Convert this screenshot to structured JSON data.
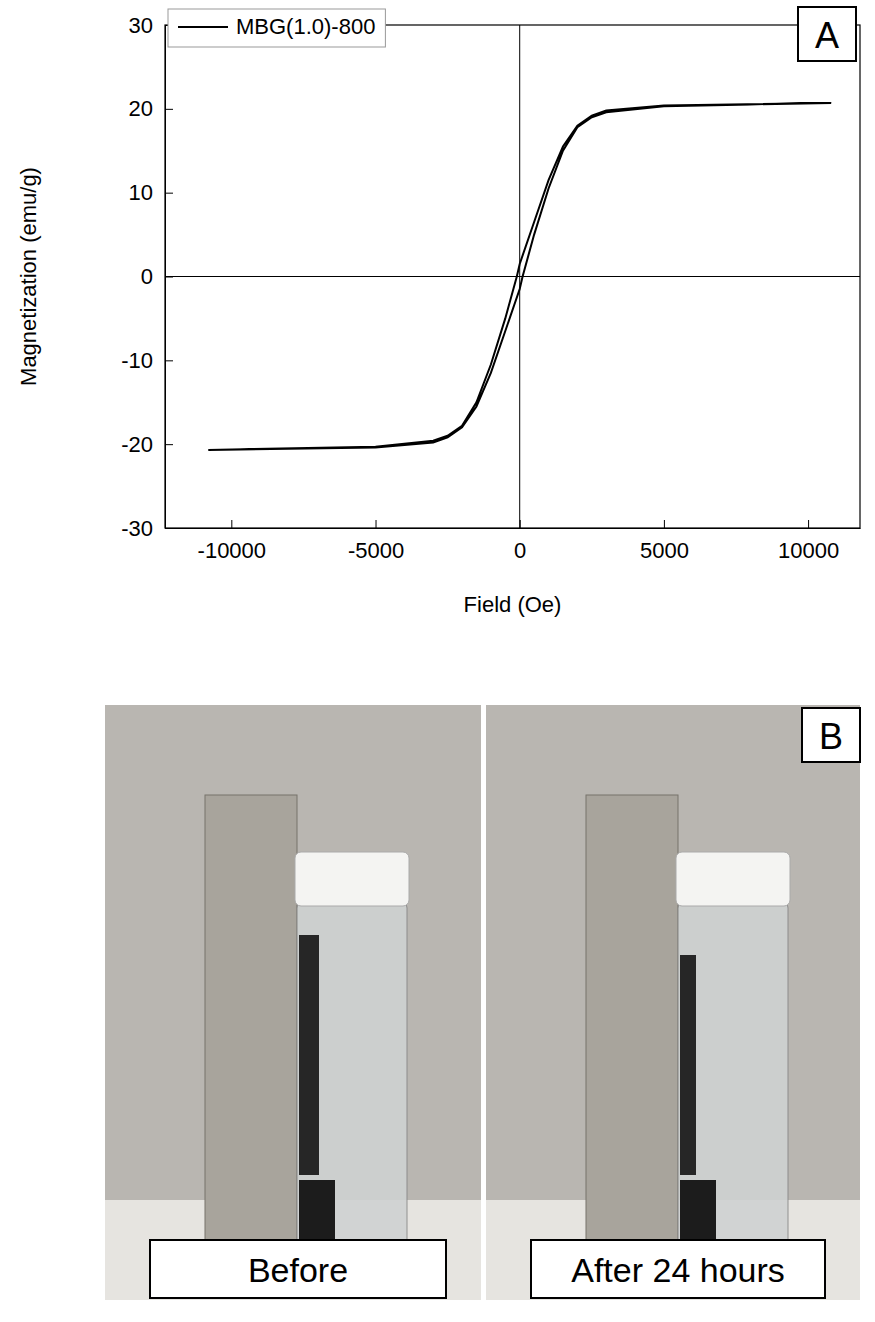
{
  "chart_data": {
    "type": "line",
    "panel_label": "A",
    "x_label": "Field (Oe)",
    "y_label": "Magnetization (emu/g)",
    "x": [
      10800,
      5000,
      3000,
      2500,
      2000,
      1500,
      1000,
      500,
      0,
      -100,
      -500,
      -1000,
      -1500,
      -2000,
      -2500,
      -3000,
      -5000,
      -10800,
      -5000,
      -3000,
      -2500,
      -2000,
      -1500,
      -1000,
      -500,
      0,
      100,
      500,
      1000,
      1500,
      2000,
      2500,
      3000,
      5000,
      10800
    ],
    "series": [
      {
        "name": "MBG(1.0)-800",
        "color": "#000000",
        "values": [
          20.7,
          20.4,
          19.8,
          19.2,
          18.0,
          15.5,
          11.5,
          6.5,
          1.5,
          0,
          -5,
          -10.5,
          -15,
          -17.8,
          -19.0,
          -19.6,
          -20.3,
          -20.7,
          -20.4,
          -19.8,
          -19.2,
          -18.0,
          -15.5,
          -11.5,
          -6.5,
          -1.5,
          0,
          5,
          10.5,
          15,
          17.8,
          19.0,
          19.6,
          20.3,
          20.7
        ]
      }
    ],
    "xlim": [
      -12300,
      11800
    ],
    "ylim": [
      -30,
      30
    ],
    "xticks": [
      -10000,
      -5000,
      0,
      5000,
      10000
    ],
    "yticks": [
      -30,
      -20,
      -10,
      0,
      10,
      20,
      30
    ],
    "grid": false,
    "legend": "upper left"
  },
  "photo_panel": {
    "panel_label": "B",
    "captions": [
      "Before",
      "After 24 hours"
    ]
  }
}
